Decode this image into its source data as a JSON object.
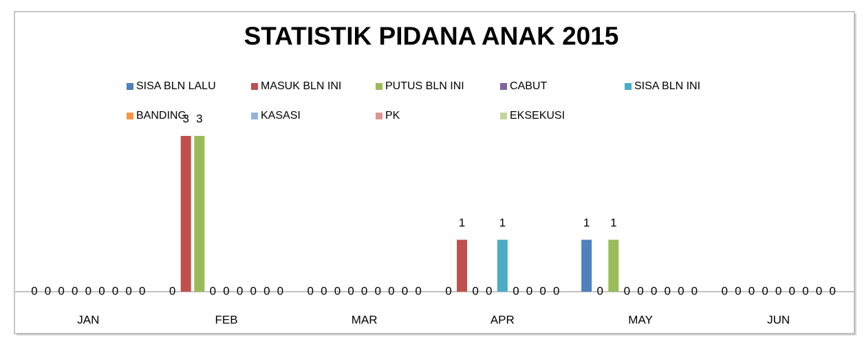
{
  "chart_data": {
    "type": "bar",
    "title": "STATISTIK PIDANA ANAK 2015",
    "categories": [
      "JAN",
      "FEB",
      "MAR",
      "APR",
      "MAY",
      "JUN"
    ],
    "ylim": [
      0,
      3
    ],
    "series": [
      {
        "name": "SISA BLN LALU",
        "color": "#4f81bd",
        "values": [
          0,
          0,
          0,
          0,
          1,
          0
        ]
      },
      {
        "name": "MASUK BLN INI",
        "color": "#c0504d",
        "values": [
          0,
          3,
          0,
          1,
          0,
          0
        ]
      },
      {
        "name": "PUTUS BLN INI",
        "color": "#9bbb59",
        "values": [
          0,
          3,
          0,
          0,
          1,
          0
        ]
      },
      {
        "name": "CABUT",
        "color": "#8064a2",
        "values": [
          0,
          0,
          0,
          0,
          0,
          0
        ]
      },
      {
        "name": "SISA BLN INI",
        "color": "#4bacc6",
        "values": [
          0,
          0,
          0,
          1,
          0,
          0
        ]
      },
      {
        "name": "BANDING",
        "color": "#f79646",
        "values": [
          0,
          0,
          0,
          0,
          0,
          0
        ]
      },
      {
        "name": "KASASI",
        "color": "#95b3d7",
        "values": [
          0,
          0,
          0,
          0,
          0,
          0
        ]
      },
      {
        "name": "PK",
        "color": "#da9694",
        "values": [
          0,
          0,
          0,
          0,
          0,
          0
        ]
      },
      {
        "name": "EKSEKUSI",
        "color": "#c3d69b",
        "values": [
          0,
          0,
          0,
          0,
          0,
          0
        ]
      }
    ]
  }
}
